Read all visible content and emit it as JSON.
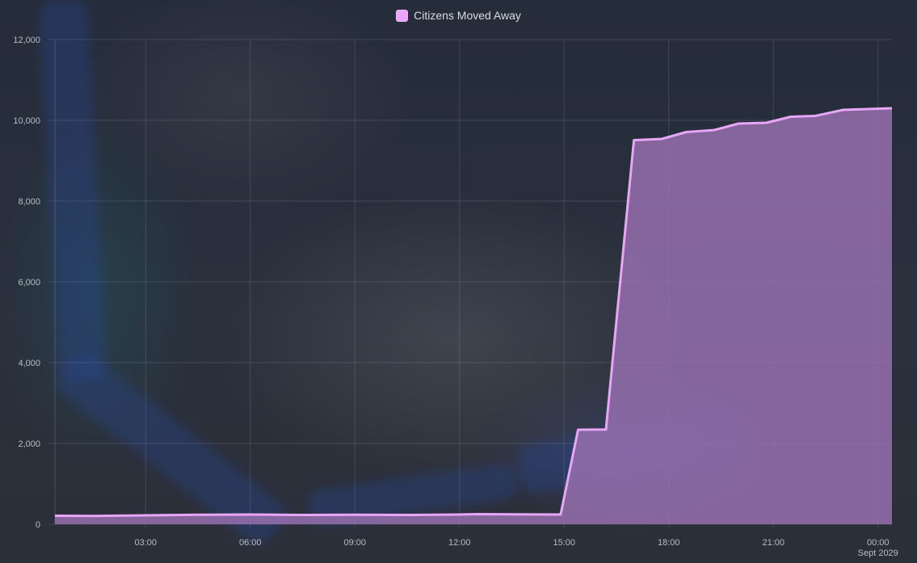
{
  "chart_data": {
    "type": "area",
    "legend": {
      "placement": "top-center",
      "entries": [
        {
          "name": "Citizens Moved Away",
          "color": "#e9a6f7"
        }
      ]
    },
    "x_tick_labels": [
      "03:00",
      "06:00",
      "09:00",
      "12:00",
      "15:00",
      "18:00",
      "21:00",
      "00:00"
    ],
    "x_sub_label": "Sept 2029",
    "y_tick_labels": [
      "0",
      "2,000",
      "4,000",
      "6,000",
      "8,000",
      "10,000",
      "12,000"
    ],
    "ylim": [
      0,
      12000
    ],
    "xlim_hours": [
      0.4,
      24.4
    ],
    "grid": true,
    "series": [
      {
        "name": "Citizens Moved Away",
        "color": "#e9a6f7",
        "fill": "#9a72b2",
        "x_hours": [
          0.4,
          1.5,
          3.0,
          4.5,
          6.0,
          7.5,
          9.0,
          10.5,
          12.0,
          12.5,
          13.5,
          14.9,
          15.4,
          16.2,
          17.0,
          17.8,
          18.5,
          19.3,
          20.0,
          20.8,
          21.5,
          22.2,
          23.0,
          24.4
        ],
        "values": [
          210,
          205,
          220,
          235,
          240,
          230,
          235,
          230,
          240,
          250,
          245,
          240,
          2340,
          2345,
          9510,
          9540,
          9710,
          9760,
          9920,
          9940,
          10090,
          10110,
          10260,
          10300
        ]
      }
    ]
  }
}
